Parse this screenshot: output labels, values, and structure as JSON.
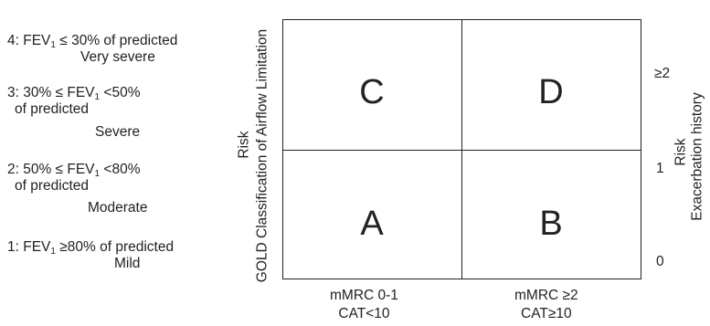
{
  "grades": [
    {
      "prefix": "4: FEV",
      "sub": "1",
      "suffix": " ≤ 30% of predicted",
      "line2": "",
      "label": "Very severe"
    },
    {
      "prefix": "3: 30% ≤ FEV",
      "sub": "1",
      "suffix": " <50%",
      "line2": "of predicted",
      "label": "Severe"
    },
    {
      "prefix": "2: 50% ≤ FEV",
      "sub": "1",
      "suffix": " <80%",
      "line2": "of predicted",
      "label": "Moderate"
    },
    {
      "prefix": "1: FEV",
      "sub": "1",
      "suffix": " ≥80% of predicted",
      "line2": "",
      "label": "Mild"
    }
  ],
  "left_axis": {
    "outer": "Risk",
    "inner": "GOLD Classification of Airflow Limitation"
  },
  "right_axis": {
    "outer": "Risk",
    "inner": "Exacerbation history",
    "ticks": [
      "≥2",
      "1",
      "0"
    ]
  },
  "quadrants": {
    "top_left": "C",
    "top_right": "D",
    "bottom_left": "A",
    "bottom_right": "B"
  },
  "bottom_axis": [
    {
      "line1": "mMRC 0-1",
      "line2": "CAT<10"
    },
    {
      "line1": "mMRC ≥2",
      "line2": "CAT≥10"
    }
  ]
}
